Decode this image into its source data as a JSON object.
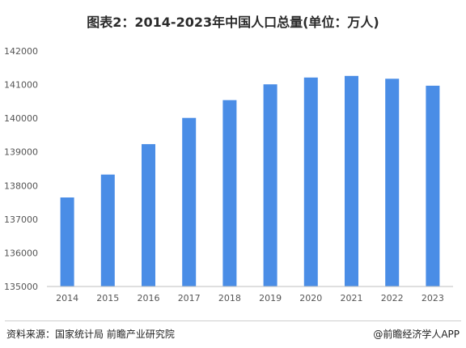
{
  "title": "图表2：2014-2023年中国人口总量(单位：万人)",
  "footer": {
    "source": "资料来源：国家统计局 前瞻产业研究院",
    "credit": "@前瞻经济学人APP"
  },
  "colors": {
    "bar": "#4a8de6",
    "axis": "#bfbfbf"
  },
  "chart_data": {
    "type": "bar",
    "title": "图表2：2014-2023年中国人口总量(单位：万人)",
    "categories": [
      "2014",
      "2015",
      "2016",
      "2017",
      "2018",
      "2019",
      "2020",
      "2021",
      "2022",
      "2023"
    ],
    "values": [
      137646,
      138326,
      139232,
      140011,
      140541,
      141008,
      141212,
      141260,
      141175,
      140967
    ],
    "ylim": [
      135000,
      142000
    ],
    "yticks": [
      135000,
      136000,
      137000,
      138000,
      139000,
      140000,
      141000,
      142000
    ],
    "xlabel": "",
    "ylabel": "",
    "grid": false,
    "legend": "none"
  }
}
